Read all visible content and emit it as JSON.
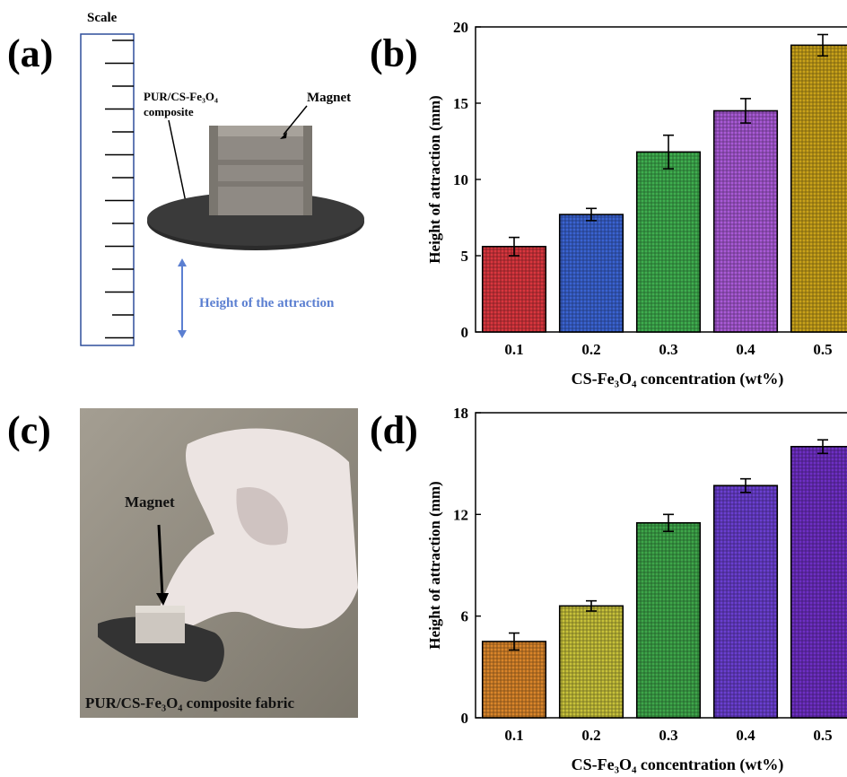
{
  "panels": {
    "a": {
      "label": "(a)",
      "scale_label": "Scale",
      "composite_label_line1": "PUR/CS-Fe₃O₄",
      "composite_label_line2": "composite",
      "magnet_label": "Magnet",
      "height_label": "Height of the attraction"
    },
    "b": {
      "label": "(b)"
    },
    "c": {
      "label": "(c)",
      "magnet_label": "Magnet",
      "caption": "PUR/CS-Fe₃O₄ composite fabric"
    },
    "d": {
      "label": "(d)"
    }
  },
  "colors": {
    "scale_blue": "#2f4e9c",
    "arrow_blue": "#5b7fd1",
    "disc": "#2b2b2b",
    "magnet": "#8f8a84"
  },
  "chart_data": [
    {
      "panel": "b",
      "type": "bar",
      "categories": [
        "0.1",
        "0.2",
        "0.3",
        "0.4",
        "0.5"
      ],
      "values": [
        5.6,
        7.7,
        11.8,
        14.5,
        18.8
      ],
      "errors": [
        0.6,
        0.4,
        1.1,
        0.8,
        0.7
      ],
      "colors": [
        "#d9363e",
        "#3a63d1",
        "#3fae4f",
        "#a95ad6",
        "#c9a21a"
      ],
      "xlabel": "CS-Fe₃O₄ concentration (wt%)",
      "ylabel": "Height of attraction (mm)",
      "ylim": [
        0,
        20
      ],
      "yticks": [
        "0",
        "5",
        "10",
        "15",
        "20"
      ]
    },
    {
      "panel": "d",
      "type": "bar",
      "categories": [
        "0.1",
        "0.2",
        "0.3",
        "0.4",
        "0.5"
      ],
      "values": [
        4.5,
        6.6,
        11.5,
        13.7,
        16.0
      ],
      "errors": [
        0.5,
        0.3,
        0.5,
        0.4,
        0.4
      ],
      "colors": [
        "#d9852a",
        "#c7c13a",
        "#3ea64a",
        "#6a3fd0",
        "#6e2fc4"
      ],
      "xlabel": "CS-Fe₃O₄ concentration (wt%)",
      "ylabel": "Height of attraction (mm)",
      "ylim": [
        0,
        18
      ],
      "yticks": [
        "0",
        "6",
        "12",
        "18"
      ]
    }
  ]
}
